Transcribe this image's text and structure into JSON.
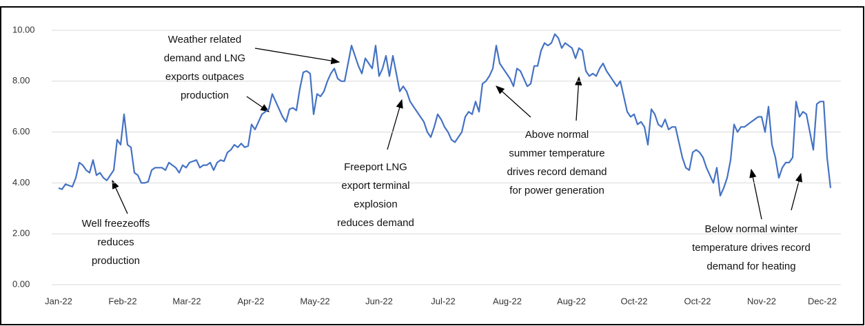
{
  "chart_data": {
    "type": "line",
    "color": "#4472c4",
    "grid": true,
    "ylim": [
      0,
      10
    ],
    "yticks": [
      {
        "value": 0,
        "label": "0.00"
      },
      {
        "value": 2,
        "label": "2.00"
      },
      {
        "value": 4,
        "label": "4.00"
      },
      {
        "value": 6,
        "label": "6.00"
      },
      {
        "value": 8,
        "label": "8.00"
      },
      {
        "value": 10,
        "label": "10.00"
      }
    ],
    "xlim": [
      0,
      224
    ],
    "xticks": [
      {
        "value": 0,
        "label": "Jan-22"
      },
      {
        "value": 18.6,
        "label": "Feb-22"
      },
      {
        "value": 37.2,
        "label": "Mar-22"
      },
      {
        "value": 55.8,
        "label": "Apr-22"
      },
      {
        "value": 74.4,
        "label": "May-22"
      },
      {
        "value": 93,
        "label": "Jun-22"
      },
      {
        "value": 111.6,
        "label": "Jul-22"
      },
      {
        "value": 130.2,
        "label": "Aug-22"
      },
      {
        "value": 148.8,
        "label": "Aug-22"
      },
      {
        "value": 167,
        "label": "Oct-22"
      },
      {
        "value": 185.4,
        "label": "Oct-22"
      },
      {
        "value": 204,
        "label": "Nov-22"
      },
      {
        "value": 221.6,
        "label": "Dec-22"
      }
    ],
    "values": [
      3.8,
      3.75,
      3.95,
      3.9,
      3.85,
      4.2,
      4.8,
      4.7,
      4.5,
      4.4,
      4.9,
      4.3,
      4.4,
      4.2,
      4.1,
      4.3,
      4.5,
      5.7,
      5.5,
      6.7,
      5.5,
      5.4,
      4.4,
      4.3,
      4.0,
      4.0,
      4.05,
      4.5,
      4.6,
      4.6,
      4.6,
      4.5,
      4.8,
      4.7,
      4.6,
      4.4,
      4.7,
      4.6,
      4.8,
      4.85,
      4.9,
      4.6,
      4.7,
      4.7,
      4.8,
      4.5,
      4.8,
      4.9,
      4.85,
      5.2,
      5.3,
      5.5,
      5.4,
      5.55,
      5.4,
      5.45,
      6.3,
      6.1,
      6.4,
      6.7,
      6.8,
      6.9,
      7.5,
      7.2,
      6.9,
      6.6,
      6.4,
      6.9,
      6.95,
      6.85,
      7.7,
      8.35,
      8.4,
      8.3,
      6.7,
      7.5,
      7.4,
      7.6,
      8.0,
      8.3,
      8.5,
      8.1,
      8.0,
      8.0,
      8.7,
      9.4,
      9.0,
      8.6,
      8.3,
      8.9,
      8.7,
      8.5,
      9.4,
      8.2,
      8.5,
      9.0,
      8.2,
      9.0,
      8.3,
      7.6,
      7.8,
      7.6,
      7.2,
      7.0,
      6.8,
      6.6,
      6.4,
      6.0,
      5.8,
      6.2,
      6.7,
      6.5,
      6.2,
      6.0,
      5.7,
      5.6,
      5.8,
      6.0,
      6.6,
      6.8,
      6.7,
      7.2,
      6.8,
      7.9,
      8.0,
      8.2,
      8.5,
      9.4,
      8.7,
      8.5,
      8.3,
      8.1,
      7.8,
      8.5,
      8.4,
      8.1,
      7.8,
      7.9,
      8.6,
      8.6,
      9.2,
      9.5,
      9.4,
      9.5,
      9.85,
      9.7,
      9.3,
      9.5,
      9.4,
      9.3,
      8.9,
      9.3,
      9.2,
      8.4,
      8.2,
      8.3,
      8.2,
      8.5,
      8.7,
      8.4,
      8.2,
      8.0,
      7.8,
      8.0,
      7.4,
      6.8,
      6.6,
      6.7,
      6.3,
      6.4,
      6.2,
      5.5,
      6.9,
      6.7,
      6.3,
      6.2,
      6.5,
      6.1,
      6.2,
      6.2,
      5.6,
      5.0,
      4.6,
      4.5,
      5.2,
      5.3,
      5.2,
      5.0,
      4.6,
      4.3,
      4.0,
      4.6,
      3.5,
      3.8,
      4.2,
      4.9,
      6.3,
      6.0,
      6.2,
      6.2,
      6.3,
      6.4,
      6.5,
      6.6,
      6.6,
      6.0,
      7.0,
      5.5,
      5.0,
      4.2,
      4.6,
      4.8,
      4.8,
      5.0,
      7.2,
      6.6,
      6.8,
      6.7,
      6.0,
      5.3,
      7.1,
      7.2,
      7.2,
      5.0,
      3.8
    ],
    "annotations": [
      {
        "lines": [
          "Well freezeoffs",
          "reduces",
          "production"
        ]
      },
      {
        "lines": [
          "Weather related",
          "demand and LNG",
          "exports outpaces",
          "production"
        ]
      },
      {
        "lines": [
          "Freeport LNG",
          "export terminal",
          "explosion",
          "reduces demand"
        ]
      },
      {
        "lines": [
          "Above normal",
          "summer temperature",
          "drives record demand",
          "for power generation"
        ]
      },
      {
        "lines": [
          "Below normal winter",
          "temperature drives record",
          "demand for heating"
        ]
      }
    ]
  }
}
